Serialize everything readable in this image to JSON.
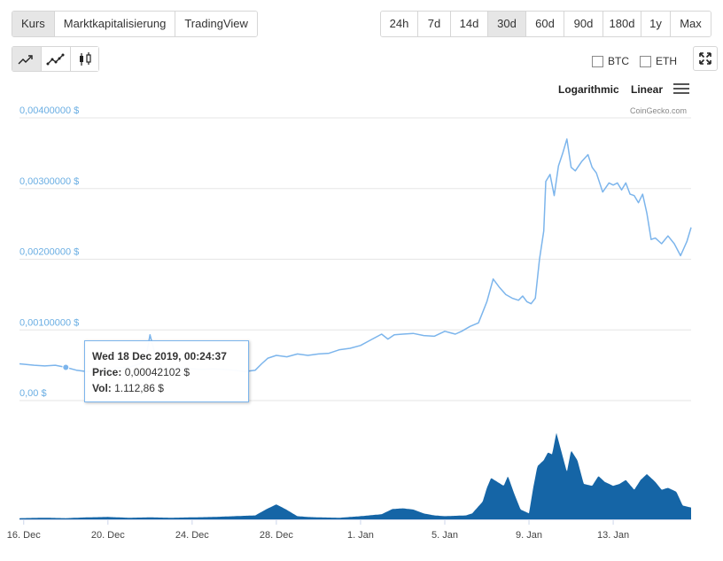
{
  "tabs": [
    {
      "label": "Kurs",
      "active": true
    },
    {
      "label": "Marktkapitalisierung",
      "active": false
    },
    {
      "label": "TradingView",
      "active": false
    }
  ],
  "ranges": [
    {
      "label": "24h",
      "active": false
    },
    {
      "label": "7d",
      "active": false
    },
    {
      "label": "14d",
      "active": false
    },
    {
      "label": "30d",
      "active": true
    },
    {
      "label": "60d",
      "active": false
    },
    {
      "label": "90d",
      "active": false
    },
    {
      "label": "180d",
      "active": false
    },
    {
      "label": "1y",
      "active": false
    },
    {
      "label": "Max",
      "active": false
    }
  ],
  "chart_types": [
    {
      "icon": "line-chart-icon",
      "active": true
    },
    {
      "icon": "ohlc-line-icon",
      "active": false
    },
    {
      "icon": "candlestick-icon",
      "active": false
    }
  ],
  "compare": {
    "btc": "BTC",
    "eth": "ETH"
  },
  "scale": {
    "log": "Logarithmic",
    "linear": "Linear"
  },
  "credit": "CoinGecko.com",
  "colors": {
    "line": "#7cb5ec",
    "volume": "#1565a6",
    "axis_label": "#6aaee3",
    "grid": "#e6e6e6"
  },
  "tooltip": {
    "date": "Wed 18 Dec 2019, 00:24:37",
    "price_label": "Price:",
    "price_value": "0,00042102 $",
    "vol_label": "Vol:",
    "vol_value": "1.112,86 $"
  },
  "chart_data": {
    "type": "line",
    "title": "",
    "xlabel": "",
    "ylabel": "",
    "ylim": [
      0,
      0.004
    ],
    "yticks": [
      "0,00 $",
      "0,00100000 $",
      "0,00200000 $",
      "0,00300000 $",
      "0,00400000 $"
    ],
    "ytick_values": [
      0,
      0.001,
      0.002,
      0.003,
      0.004
    ],
    "xlim": [
      0,
      31.7
    ],
    "xticks": [
      "16. Dec",
      "20. Dec",
      "24. Dec",
      "28. Dec",
      "1. Jan",
      "5. Jan",
      "9. Jan",
      "13. Jan"
    ],
    "xtick_values": [
      0,
      4,
      8,
      12,
      16,
      20,
      24,
      28
    ],
    "x_unit": "days from 16 Dec 2019",
    "series": [
      {
        "kind": "price",
        "x": [
          -0.2,
          0.5,
          1.0,
          1.5,
          2.0,
          2.5,
          3.0,
          3.5,
          4.0,
          4.5,
          5.0,
          5.5,
          5.8,
          6.0,
          6.3,
          6.6,
          7.0,
          7.5,
          8.0,
          8.5,
          9.0,
          9.5,
          10.0,
          10.5,
          11.0,
          11.3,
          11.6,
          12.0,
          12.5,
          13.0,
          13.5,
          14.0,
          14.5,
          15.0,
          15.5,
          16.0,
          16.5,
          17.0,
          17.3,
          17.6,
          18.0,
          18.5,
          19.0,
          19.5,
          20.0,
          20.5,
          20.8,
          21.2,
          21.6,
          21.8,
          22.0,
          22.3,
          22.6,
          22.9,
          23.2,
          23.5,
          23.7,
          23.9,
          24.1,
          24.3,
          24.5,
          24.7,
          24.8,
          25.0,
          25.2,
          25.4,
          25.6,
          25.8,
          26.0,
          26.2,
          26.5,
          26.8,
          27.0,
          27.2,
          27.5,
          27.8,
          28.0,
          28.2,
          28.4,
          28.6,
          28.8,
          29.0,
          29.2,
          29.4,
          29.6,
          29.8,
          30.0,
          30.3,
          30.6,
          30.9,
          31.2,
          31.5,
          31.7
        ],
        "y": [
          0.00052,
          0.0005,
          0.00049,
          0.0005,
          0.00047,
          0.00043,
          0.00041,
          0.00042,
          0.00044,
          0.00046,
          0.00047,
          0.00052,
          0.0006,
          0.00093,
          0.00058,
          0.00047,
          0.00045,
          0.00046,
          0.00045,
          0.00044,
          0.00045,
          0.00044,
          0.00043,
          0.00041,
          0.00043,
          0.00052,
          0.0006,
          0.00064,
          0.00062,
          0.00066,
          0.00064,
          0.00066,
          0.00067,
          0.00072,
          0.00074,
          0.00078,
          0.00086,
          0.00094,
          0.00087,
          0.00093,
          0.00094,
          0.00095,
          0.00092,
          0.00091,
          0.00098,
          0.00094,
          0.00098,
          0.00105,
          0.0011,
          0.00125,
          0.0014,
          0.00172,
          0.0016,
          0.0015,
          0.00145,
          0.00142,
          0.00148,
          0.0014,
          0.00137,
          0.00145,
          0.002,
          0.0024,
          0.0031,
          0.0032,
          0.0029,
          0.00332,
          0.0035,
          0.0037,
          0.0033,
          0.00325,
          0.00338,
          0.00348,
          0.0033,
          0.00322,
          0.00295,
          0.00308,
          0.00305,
          0.00308,
          0.00298,
          0.00308,
          0.00292,
          0.0029,
          0.0028,
          0.00292,
          0.00265,
          0.00228,
          0.0023,
          0.00222,
          0.00233,
          0.00222,
          0.00205,
          0.00225,
          0.00245
        ]
      },
      {
        "kind": "volume",
        "x": [
          -0.2,
          1.0,
          2.0,
          3.0,
          4.0,
          5.0,
          6.0,
          7.0,
          8.0,
          9.0,
          10.0,
          11.0,
          11.5,
          12.0,
          12.5,
          13.0,
          13.5,
          14.0,
          15.0,
          16.0,
          17.0,
          17.5,
          18.0,
          18.5,
          19.0,
          19.5,
          20.0,
          21.0,
          21.3,
          21.8,
          22.0,
          22.2,
          22.5,
          22.8,
          23.0,
          23.3,
          23.6,
          24.0,
          24.2,
          24.4,
          24.7,
          24.9,
          25.1,
          25.3,
          25.5,
          25.8,
          26.0,
          26.3,
          26.6,
          27.0,
          27.3,
          27.6,
          28.0,
          28.3,
          28.6,
          29.0,
          29.3,
          29.6,
          30.0,
          30.3,
          30.6,
          31.0,
          31.3,
          31.7
        ],
        "y": [
          0.3,
          0.4,
          0.3,
          0.5,
          0.6,
          0.4,
          0.5,
          0.4,
          0.5,
          0.6,
          0.8,
          1.0,
          2.5,
          3.8,
          2.4,
          0.8,
          0.6,
          0.5,
          0.4,
          0.8,
          1.3,
          2.6,
          2.8,
          2.5,
          1.5,
          1.0,
          0.8,
          1.0,
          1.5,
          4.5,
          8.0,
          10.5,
          9.5,
          8.5,
          11.0,
          6.5,
          2.5,
          1.5,
          8.0,
          13.5,
          15.0,
          17.0,
          16.5,
          22.0,
          18.0,
          12.0,
          17.5,
          15.0,
          9.0,
          8.5,
          11.0,
          9.5,
          8.5,
          9.0,
          10.0,
          7.5,
          10.0,
          11.5,
          9.5,
          7.5,
          8.0,
          7.0,
          3.5,
          3.0
        ]
      }
    ],
    "volume_ylim": [
      0,
      22.5
    ],
    "volume_unit": "relative"
  }
}
